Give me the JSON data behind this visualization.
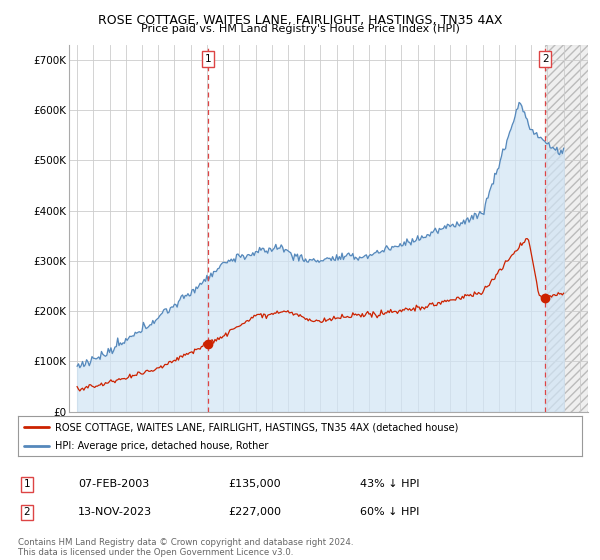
{
  "title": "ROSE COTTAGE, WAITES LANE, FAIRLIGHT, HASTINGS, TN35 4AX",
  "subtitle": "Price paid vs. HM Land Registry's House Price Index (HPI)",
  "sale1_date": "07-FEB-2003",
  "sale1_price": 135000,
  "sale1_price_label": "£135,000",
  "sale1_label": "43% ↓ HPI",
  "sale1_year": 2003.08,
  "sale2_date": "13-NOV-2023",
  "sale2_price": 227000,
  "sale2_price_label": "£227,000",
  "sale2_label": "60% ↓ HPI",
  "sale2_year": 2023.87,
  "legend_line1": "ROSE COTTAGE, WAITES LANE, FAIRLIGHT, HASTINGS, TN35 4AX (detached house)",
  "legend_line2": "HPI: Average price, detached house, Rother",
  "footer": "Contains HM Land Registry data © Crown copyright and database right 2024.\nThis data is licensed under the Open Government Licence v3.0.",
  "red_color": "#cc2200",
  "blue_color": "#5588bb",
  "blue_fill": "#d0e4f5",
  "vline_color": "#dd4444",
  "grid_color": "#cccccc",
  "background_color": "#ffffff",
  "ylim_max": 730000,
  "xlim_start": 1994.5,
  "xlim_end": 2026.5
}
